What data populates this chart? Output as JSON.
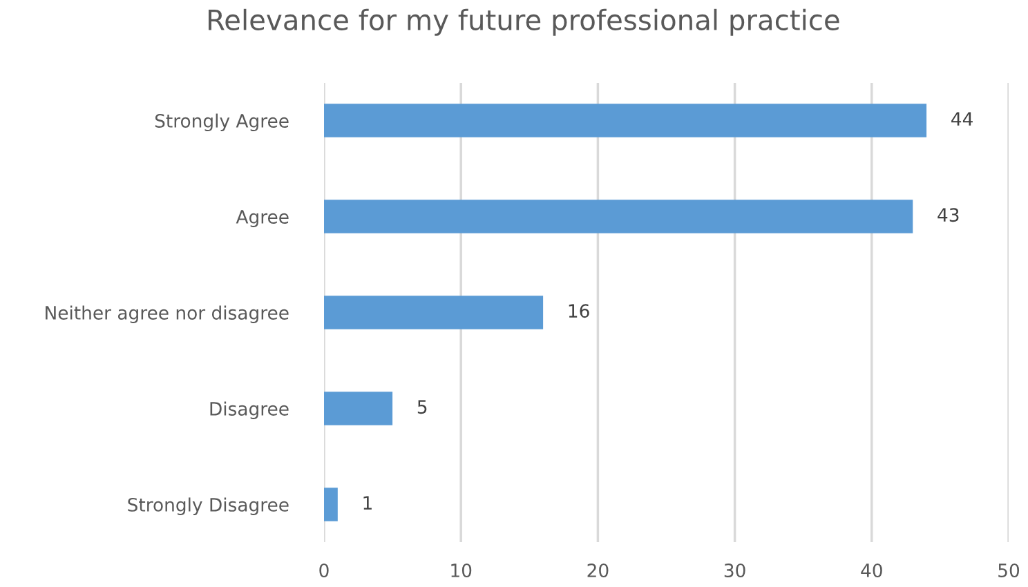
{
  "chart_data": {
    "type": "bar",
    "orientation": "horizontal",
    "title": "Relevance for my future professional practice",
    "categories": [
      "Strongly Agree",
      "Agree",
      "Neither agree nor disagree",
      "Disagree",
      "Strongly Disagree"
    ],
    "values": [
      44,
      43,
      16,
      5,
      1
    ],
    "color": "#5b9bd5",
    "xlim": [
      0,
      50
    ],
    "xticks": [
      0,
      10,
      20,
      30,
      40,
      50
    ],
    "grid": "x",
    "data_labels": true
  }
}
